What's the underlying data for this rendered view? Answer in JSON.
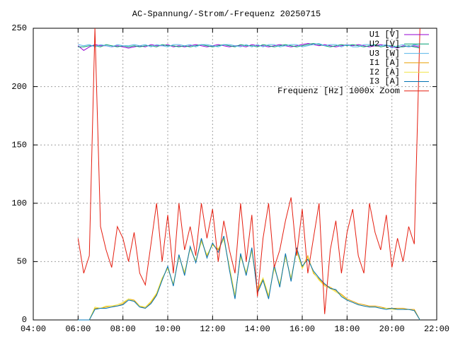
{
  "chart_data": {
    "type": "line",
    "title": "AC-Spannung/-Strom/-Frequenz 20250715",
    "x": [
      6,
      6.25,
      6.5,
      6.75,
      7,
      7.25,
      7.5,
      7.75,
      8,
      8.25,
      8.5,
      8.75,
      9,
      9.25,
      9.5,
      9.75,
      10,
      10.25,
      10.5,
      10.75,
      11,
      11.25,
      11.5,
      11.75,
      12,
      12.25,
      12.5,
      12.75,
      13,
      13.25,
      13.5,
      13.75,
      14,
      14.25,
      14.5,
      14.75,
      15,
      15.25,
      15.5,
      15.75,
      16,
      16.25,
      16.5,
      16.75,
      17,
      17.25,
      17.5,
      17.75,
      18,
      18.25,
      18.5,
      18.75,
      19,
      19.25,
      19.5,
      19.75,
      20,
      20.25,
      20.5,
      20.75,
      21,
      21.25
    ],
    "series": [
      {
        "name": "U1 [V]",
        "color": "#9400d3",
        "values": [
          235,
          231,
          234,
          236,
          235,
          235,
          234,
          235,
          234,
          233,
          234,
          235,
          234,
          236,
          235,
          235,
          236,
          234,
          235,
          234,
          235,
          236,
          235,
          234,
          235,
          236,
          235,
          234,
          235,
          235,
          234,
          236,
          235,
          235,
          234,
          235,
          236,
          235,
          234,
          235,
          236,
          237,
          236,
          235,
          236,
          235,
          234,
          235,
          236,
          235,
          236,
          235,
          234,
          235,
          236,
          235,
          234,
          233,
          235,
          234,
          235,
          234
        ]
      },
      {
        "name": "U2 [V]",
        "color": "#009e73",
        "values": [
          234,
          234,
          235,
          235,
          234,
          236,
          235,
          234,
          235,
          234,
          235,
          234,
          235,
          235,
          234,
          236,
          235,
          235,
          234,
          235,
          234,
          235,
          236,
          235,
          234,
          235,
          236,
          235,
          234,
          236,
          235,
          235,
          234,
          236,
          235,
          234,
          235,
          236,
          235,
          234,
          235,
          236,
          237,
          236,
          235,
          234,
          235,
          236,
          235,
          236,
          235,
          234,
          235,
          236,
          234,
          235,
          235,
          234,
          234,
          235,
          234,
          233
        ]
      },
      {
        "name": "U3 [W]",
        "color": "#56b4e9",
        "values": [
          236,
          235,
          236,
          234,
          236,
          235,
          234,
          236,
          235,
          235,
          236,
          235,
          236,
          234,
          236,
          235,
          234,
          236,
          236,
          235,
          236,
          234,
          236,
          236,
          235,
          234,
          236,
          236,
          235,
          234,
          236,
          234,
          236,
          234,
          236,
          236,
          234,
          235,
          236,
          236,
          234,
          235,
          236,
          237,
          235,
          236,
          236,
          234,
          236,
          234,
          234,
          236,
          236,
          235,
          235,
          236,
          233,
          235,
          236,
          234,
          236,
          235
        ]
      },
      {
        "name": "I1 [A]",
        "color": "#e69f00",
        "values": [
          0,
          0,
          0,
          10,
          10,
          11,
          12,
          12,
          14,
          18,
          17,
          12,
          10,
          15,
          22,
          35,
          45,
          30,
          55,
          40,
          62,
          50,
          68,
          55,
          65,
          60,
          70,
          45,
          20,
          55,
          40,
          60,
          25,
          35,
          20,
          45,
          30,
          55,
          35,
          60,
          45,
          55,
          40,
          35,
          30,
          28,
          25,
          22,
          18,
          16,
          14,
          13,
          12,
          12,
          11,
          10,
          10,
          10,
          10,
          9,
          9,
          0
        ]
      },
      {
        "name": "I2 [A]",
        "color": "#f0e442",
        "values": [
          0,
          0,
          0,
          11,
          10,
          12,
          12,
          13,
          15,
          18,
          16,
          12,
          11,
          16,
          23,
          36,
          44,
          31,
          54,
          41,
          61,
          51,
          67,
          56,
          64,
          61,
          69,
          46,
          21,
          54,
          41,
          59,
          26,
          36,
          21,
          44,
          31,
          54,
          36,
          59,
          44,
          54,
          41,
          34,
          29,
          27,
          24,
          21,
          17,
          15,
          13,
          12,
          11,
          11,
          10,
          10,
          9,
          9,
          9,
          9,
          8,
          0
        ]
      },
      {
        "name": "I3 [A]",
        "color": "#0072b2",
        "values": [
          0,
          0,
          0,
          9,
          10,
          10,
          11,
          12,
          13,
          17,
          16,
          11,
          10,
          14,
          21,
          34,
          46,
          29,
          56,
          38,
          63,
          49,
          70,
          53,
          66,
          58,
          72,
          43,
          18,
          57,
          38,
          62,
          23,
          34,
          18,
          47,
          28,
          57,
          33,
          62,
          46,
          52,
          42,
          36,
          31,
          27,
          26,
          20,
          17,
          15,
          13,
          12,
          11,
          11,
          10,
          9,
          10,
          9,
          9,
          9,
          8,
          0
        ]
      },
      {
        "name": "Frequenz [Hz] 1000x Zoom",
        "color": "#e51e10",
        "values": [
          70,
          40,
          55,
          250,
          80,
          60,
          45,
          80,
          70,
          50,
          75,
          40,
          30,
          65,
          100,
          50,
          90,
          40,
          100,
          60,
          80,
          55,
          100,
          70,
          95,
          50,
          85,
          60,
          40,
          100,
          50,
          90,
          20,
          70,
          100,
          45,
          60,
          85,
          105,
          55,
          95,
          40,
          70,
          100,
          5,
          60,
          85,
          40,
          75,
          95,
          55,
          40,
          100,
          75,
          60,
          90,
          45,
          70,
          50,
          80,
          65,
          250
        ]
      }
    ],
    "xlim": [
      4,
      22
    ],
    "xticks": [
      {
        "value": 4,
        "label": "04:00"
      },
      {
        "value": 6,
        "label": "06:00"
      },
      {
        "value": 8,
        "label": "08:00"
      },
      {
        "value": 10,
        "label": "10:00"
      },
      {
        "value": 12,
        "label": "12:00"
      },
      {
        "value": 14,
        "label": "14:00"
      },
      {
        "value": 16,
        "label": "16:00"
      },
      {
        "value": 18,
        "label": "18:00"
      },
      {
        "value": 20,
        "label": "20:00"
      },
      {
        "value": 22,
        "label": "22:00"
      }
    ],
    "ylim": [
      0,
      250
    ],
    "yticks": [
      0,
      50,
      100,
      150,
      200,
      250
    ],
    "grid": true,
    "legend": "top-right"
  }
}
